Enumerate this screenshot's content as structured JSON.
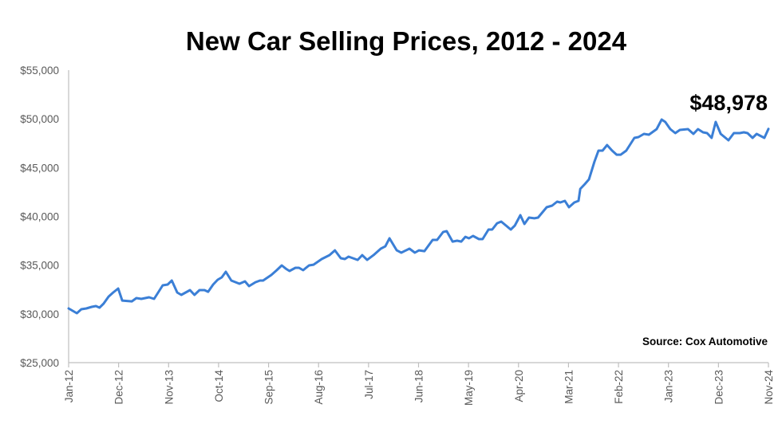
{
  "chart_data": {
    "type": "line",
    "title": "New Car Selling Prices, 2012 - 2024",
    "xlabel": "",
    "ylabel": "",
    "ylim": [
      25000,
      55000
    ],
    "yticks": [
      25000,
      30000,
      35000,
      40000,
      45000,
      50000,
      55000
    ],
    "ytick_labels": [
      "$25,000",
      "$30,000",
      "$35,000",
      "$40,000",
      "$45,000",
      "$50,000",
      "$55,000"
    ],
    "x_unit": "months since Jan-12",
    "xlim": [
      0,
      154
    ],
    "xticks": [
      0,
      11,
      22,
      33,
      44,
      55,
      66,
      77,
      88,
      99,
      110,
      121,
      132,
      143,
      154
    ],
    "xtick_labels": [
      "Jan-12",
      "Dec-12",
      "Nov-13",
      "Oct-14",
      "Sep-15",
      "Aug-16",
      "Jul-17",
      "Jun-18",
      "May-19",
      "Apr-20",
      "Mar-21",
      "Feb-22",
      "Jan-23",
      "Dec-23",
      "Nov-24"
    ],
    "grid": false,
    "legend": "none",
    "series": [
      {
        "name": "New Car Selling Price",
        "color": "#3b7fd6",
        "x": [
          0,
          1.8,
          2.8,
          3.9,
          5.1,
          6.0,
          6.8,
          7.7,
          8.8,
          9.8,
          10.9,
          11.8,
          13.9,
          14.9,
          16.0,
          17.7,
          18.8,
          19.7,
          20.7,
          21.8,
          22.7,
          23.9,
          24.8,
          26.7,
          27.7,
          28.8,
          29.9,
          30.7,
          31.8,
          32.8,
          33.7,
          34.6,
          35.8,
          37.6,
          38.8,
          39.7,
          41.1,
          42.1,
          42.8,
          44.6,
          45.8,
          46.9,
          47.8,
          48.6,
          49.9,
          50.7,
          51.6,
          52.9,
          53.9,
          55.7,
          57.4,
          58.6,
          59.9,
          60.8,
          61.6,
          63.6,
          64.6,
          65.7,
          67.1,
          68.7,
          69.7,
          70.6,
          72.2,
          73.2,
          75.0,
          76.2,
          77.1,
          78.3,
          80.1,
          81.1,
          82.4,
          83.2,
          84.5,
          85.5,
          86.4,
          87.3,
          88.1,
          89.0,
          90.3,
          91.1,
          92.4,
          93.2,
          94.3,
          95.2,
          97.3,
          98.2,
          99.4,
          100.3,
          101.3,
          102.5,
          103.3,
          105.2,
          106.4,
          107.5,
          108.2,
          109.2,
          110.1,
          111.3,
          112.2,
          112.6,
          113.6,
          114.5,
          115.7,
          116.6,
          117.5,
          118.5,
          119.6,
          120.6,
          121.5,
          122.7,
          124.5,
          125.4,
          126.6,
          127.7,
          129.4,
          130.5,
          131.3,
          132.4,
          133.5,
          134.5,
          136.3,
          137.5,
          138.5,
          139.6,
          140.5,
          141.5,
          142.4,
          143.5,
          145.2,
          146.4,
          147.7,
          148.6,
          149.4,
          150.5,
          151.4,
          153.1,
          154
        ],
        "y": [
          30560,
          30070,
          30480,
          30560,
          30720,
          30800,
          30640,
          31050,
          31780,
          32190,
          32600,
          31370,
          31290,
          31620,
          31540,
          31700,
          31540,
          32190,
          32930,
          33010,
          33420,
          32190,
          31950,
          32440,
          31950,
          32440,
          32440,
          32270,
          33010,
          33500,
          33750,
          34320,
          33420,
          33090,
          33340,
          32850,
          33250,
          33420,
          33420,
          33990,
          34480,
          34970,
          34640,
          34400,
          34730,
          34730,
          34480,
          34970,
          35050,
          35630,
          36030,
          36520,
          35710,
          35630,
          35870,
          35540,
          36030,
          35540,
          36030,
          36690,
          36930,
          37750,
          36520,
          36280,
          36690,
          36280,
          36520,
          36440,
          37590,
          37590,
          38400,
          38490,
          37420,
          37510,
          37420,
          37910,
          37750,
          38000,
          37670,
          37670,
          38650,
          38650,
          39300,
          39470,
          38650,
          39060,
          40120,
          39220,
          39880,
          39800,
          39880,
          40940,
          41100,
          41510,
          41430,
          41590,
          40940,
          41430,
          41590,
          42820,
          43310,
          43800,
          45600,
          46740,
          46740,
          47320,
          46740,
          46330,
          46330,
          46740,
          48050,
          48130,
          48460,
          48380,
          48950,
          49930,
          49690,
          48950,
          48540,
          48870,
          48950,
          48460,
          48950,
          48620,
          48540,
          48050,
          49690,
          48460,
          47810,
          48540,
          48540,
          48620,
          48540,
          48050,
          48460,
          48050,
          48978
        ]
      }
    ],
    "annotations": [
      {
        "text": "$48,978",
        "x": 154,
        "y": 48978
      }
    ],
    "source": "Source: Cox Automotive"
  }
}
